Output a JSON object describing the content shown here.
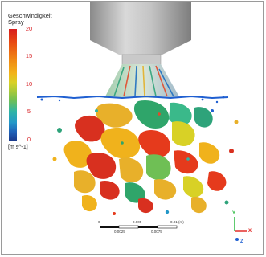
{
  "legend": {
    "title_line1": "Geschwindigkeit",
    "title_line2": "Spray",
    "ticks": [
      "20",
      "15",
      "10",
      "5",
      "0"
    ],
    "unit": "[m s^-1]",
    "colors": [
      "#d71d1d",
      "#f08a14",
      "#d8d126",
      "#6fbf55",
      "#2fb4a5",
      "#2397c8",
      "#1b3a8c"
    ]
  },
  "scale_bar": {
    "top_labels": [
      "0",
      "0.005",
      "0.01 (m)"
    ],
    "bottom_labels": [
      "0.0025",
      "0.0075"
    ]
  },
  "triad": {
    "axes": [
      "X",
      "Y",
      "Z"
    ],
    "colors": [
      "#e0201c",
      "#1db534",
      "#1f5fd1"
    ]
  },
  "nozzle": {
    "body_color": "#b5b5b5"
  }
}
